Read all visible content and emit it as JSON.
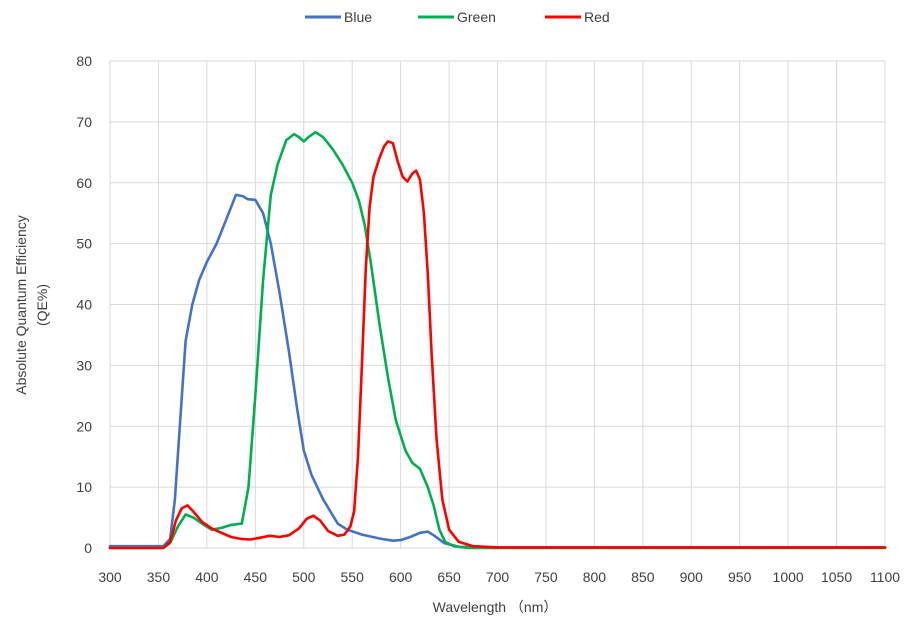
{
  "chart_data": {
    "type": "line",
    "xlabel": "Wavelength （nm）",
    "ylabel_line1": "Absolute Quantum Efficiency",
    "ylabel_line2": "(QE%)",
    "xlim": [
      300,
      1100
    ],
    "ylim": [
      0,
      80
    ],
    "x_ticks": [
      300,
      350,
      400,
      450,
      500,
      550,
      600,
      650,
      700,
      750,
      800,
      850,
      900,
      950,
      1000,
      1050,
      1100
    ],
    "y_ticks": [
      0,
      10,
      20,
      30,
      40,
      50,
      60,
      70,
      80
    ],
    "grid": true,
    "legend_position": "top",
    "series": [
      {
        "name": "Blue",
        "color": "#4472C4",
        "points": [
          [
            300,
            0.3
          ],
          [
            355,
            0.3
          ],
          [
            362,
            1.5
          ],
          [
            367,
            8
          ],
          [
            372,
            20
          ],
          [
            378,
            34
          ],
          [
            385,
            40
          ],
          [
            392,
            44
          ],
          [
            400,
            47
          ],
          [
            410,
            50
          ],
          [
            420,
            54
          ],
          [
            430,
            58
          ],
          [
            437,
            57.8
          ],
          [
            442,
            57.3
          ],
          [
            450,
            57.2
          ],
          [
            458,
            55
          ],
          [
            466,
            50
          ],
          [
            475,
            42
          ],
          [
            485,
            32
          ],
          [
            493,
            23
          ],
          [
            500,
            16
          ],
          [
            508,
            12
          ],
          [
            520,
            8
          ],
          [
            535,
            4
          ],
          [
            545,
            3
          ],
          [
            560,
            2.2
          ],
          [
            580,
            1.5
          ],
          [
            592,
            1.2
          ],
          [
            600,
            1.3
          ],
          [
            610,
            1.8
          ],
          [
            620,
            2.5
          ],
          [
            628,
            2.7
          ],
          [
            635,
            2
          ],
          [
            645,
            0.8
          ],
          [
            660,
            0.2
          ],
          [
            700,
            0.1
          ],
          [
            1100,
            0.1
          ]
        ]
      },
      {
        "name": "Green",
        "color": "#00B050",
        "points": [
          [
            300,
            0
          ],
          [
            355,
            0
          ],
          [
            362,
            0.8
          ],
          [
            370,
            3.5
          ],
          [
            378,
            5.5
          ],
          [
            386,
            5
          ],
          [
            395,
            4
          ],
          [
            405,
            3
          ],
          [
            415,
            3.3
          ],
          [
            425,
            3.8
          ],
          [
            436,
            4
          ],
          [
            443,
            10
          ],
          [
            450,
            25
          ],
          [
            458,
            44
          ],
          [
            466,
            58
          ],
          [
            473,
            63
          ],
          [
            482,
            67
          ],
          [
            490,
            68
          ],
          [
            495,
            67.5
          ],
          [
            500,
            66.8
          ],
          [
            505,
            67.5
          ],
          [
            512,
            68.3
          ],
          [
            520,
            67.5
          ],
          [
            530,
            65.5
          ],
          [
            540,
            63
          ],
          [
            550,
            60
          ],
          [
            557,
            57
          ],
          [
            563,
            53
          ],
          [
            570,
            46
          ],
          [
            578,
            37
          ],
          [
            587,
            28
          ],
          [
            595,
            21
          ],
          [
            605,
            16
          ],
          [
            612,
            14
          ],
          [
            620,
            13
          ],
          [
            628,
            10
          ],
          [
            634,
            7
          ],
          [
            640,
            3
          ],
          [
            646,
            1
          ],
          [
            655,
            0.3
          ],
          [
            670,
            0
          ],
          [
            1100,
            0
          ]
        ]
      },
      {
        "name": "Red",
        "color": "#FF0000",
        "points": [
          [
            300,
            0
          ],
          [
            355,
            0
          ],
          [
            362,
            1
          ],
          [
            368,
            4.5
          ],
          [
            374,
            6.5
          ],
          [
            380,
            7
          ],
          [
            386,
            6
          ],
          [
            395,
            4.3
          ],
          [
            405,
            3.2
          ],
          [
            415,
            2.5
          ],
          [
            425,
            1.8
          ],
          [
            435,
            1.5
          ],
          [
            445,
            1.4
          ],
          [
            455,
            1.7
          ],
          [
            465,
            2
          ],
          [
            475,
            1.8
          ],
          [
            485,
            2.1
          ],
          [
            495,
            3.2
          ],
          [
            503,
            4.8
          ],
          [
            510,
            5.3
          ],
          [
            517,
            4.5
          ],
          [
            525,
            2.8
          ],
          [
            535,
            2
          ],
          [
            542,
            2.2
          ],
          [
            548,
            3.5
          ],
          [
            552,
            6
          ],
          [
            556,
            15
          ],
          [
            560,
            30
          ],
          [
            564,
            46
          ],
          [
            568,
            56
          ],
          [
            572,
            61
          ],
          [
            578,
            64
          ],
          [
            583,
            66
          ],
          [
            587,
            66.8
          ],
          [
            592,
            66.5
          ],
          [
            597,
            63.5
          ],
          [
            602,
            61
          ],
          [
            607,
            60.2
          ],
          [
            612,
            61.5
          ],
          [
            616,
            62
          ],
          [
            620,
            60.5
          ],
          [
            624,
            55
          ],
          [
            628,
            45
          ],
          [
            632,
            32
          ],
          [
            637,
            18
          ],
          [
            643,
            8
          ],
          [
            650,
            3
          ],
          [
            660,
            1
          ],
          [
            675,
            0.3
          ],
          [
            700,
            0.1
          ],
          [
            1100,
            0.1
          ]
        ]
      }
    ]
  }
}
